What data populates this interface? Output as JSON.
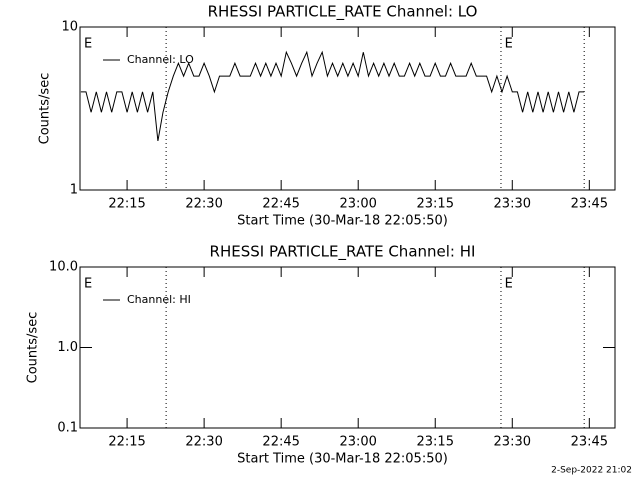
{
  "chart_data": [
    {
      "type": "line",
      "title": "RHESSI PARTICLE_RATE Channel: LO",
      "ylabel": "Counts/sec",
      "xlabel": "Start Time (30-Mar-18 22:05:50)",
      "log_y": true,
      "ylim": [
        1,
        10
      ],
      "yticks": [
        1,
        10
      ],
      "xlim": [
        5.833,
        110
      ],
      "xticks": [
        {
          "value": 15,
          "label": "22:15"
        },
        {
          "value": 30,
          "label": "22:30"
        },
        {
          "value": 45,
          "label": "22:45"
        },
        {
          "value": 60,
          "label": "23:00"
        },
        {
          "value": 75,
          "label": "23:15"
        },
        {
          "value": 90,
          "label": "23:30"
        },
        {
          "value": 105,
          "label": "23:45"
        }
      ],
      "event_lines": [
        22.6,
        87.8,
        104
      ],
      "event_labels": [
        {
          "x": 6.6,
          "text": "E"
        },
        {
          "x": 88.5,
          "text": "E"
        }
      ],
      "series": [
        {
          "name": "Channel: LO",
          "color": "#000000",
          "x": [
            6,
            7,
            8,
            9,
            10,
            11,
            12,
            13,
            14,
            15,
            16,
            17,
            18,
            19,
            20,
            21,
            22,
            23,
            24,
            25,
            26,
            27,
            28,
            29,
            30,
            31,
            32,
            33,
            34,
            35,
            36,
            37,
            38,
            39,
            40,
            41,
            42,
            43,
            44,
            45,
            46,
            47,
            48,
            49,
            50,
            51,
            52,
            53,
            54,
            55,
            56,
            57,
            58,
            59,
            60,
            61,
            62,
            63,
            64,
            65,
            66,
            67,
            68,
            69,
            70,
            71,
            72,
            73,
            74,
            75,
            76,
            77,
            78,
            79,
            80,
            81,
            82,
            83,
            84,
            85,
            86,
            87,
            88,
            89,
            90,
            91,
            92,
            93,
            94,
            95,
            96,
            97,
            98,
            99,
            100,
            101,
            102,
            103,
            104
          ],
          "values": [
            4,
            4,
            3,
            4,
            3,
            4,
            3,
            4,
            4,
            3,
            4,
            3,
            4,
            3,
            4,
            2,
            3,
            4,
            5,
            6,
            5,
            6,
            5,
            5,
            6,
            5,
            4,
            5,
            5,
            5,
            6,
            5,
            5,
            5,
            6,
            5,
            6,
            5,
            6,
            5,
            7,
            6,
            5,
            6,
            7,
            5,
            6,
            7,
            5,
            6,
            5,
            6,
            5,
            6,
            5,
            7,
            5,
            6,
            5,
            6,
            5,
            6,
            5,
            5,
            6,
            5,
            6,
            5,
            5,
            6,
            5,
            5,
            6,
            5,
            5,
            5,
            6,
            5,
            5,
            5,
            4,
            5,
            4,
            5,
            4,
            4,
            3,
            4,
            3,
            4,
            3,
            4,
            3,
            4,
            3,
            4,
            3,
            4,
            4
          ]
        }
      ]
    },
    {
      "type": "line",
      "title": "RHESSI PARTICLE_RATE Channel: HI",
      "ylabel": "Counts/sec",
      "xlabel": "Start Time (30-Mar-18 22:05:50)",
      "log_y": true,
      "ylim": [
        0.1,
        10
      ],
      "yticks": [
        0.1,
        {
          "value": 1,
          "label": "1.0"
        },
        {
          "value": 10,
          "label": "10.0"
        }
      ],
      "xlim": [
        5.833,
        110
      ],
      "xticks": [
        {
          "value": 15,
          "label": "22:15"
        },
        {
          "value": 30,
          "label": "22:30"
        },
        {
          "value": 45,
          "label": "22:45"
        },
        {
          "value": 60,
          "label": "23:00"
        },
        {
          "value": 75,
          "label": "23:15"
        },
        {
          "value": 90,
          "label": "23:30"
        },
        {
          "value": 105,
          "label": "23:45"
        }
      ],
      "event_lines": [
        22.6,
        87.8,
        104
      ],
      "event_labels": [
        {
          "x": 6.6,
          "text": "E"
        },
        {
          "x": 88.5,
          "text": "E"
        }
      ],
      "series": [
        {
          "name": "Channel: HI",
          "color": "#000000",
          "x": [],
          "values": []
        }
      ]
    }
  ],
  "footer": "2-Sep-2022 21:02"
}
